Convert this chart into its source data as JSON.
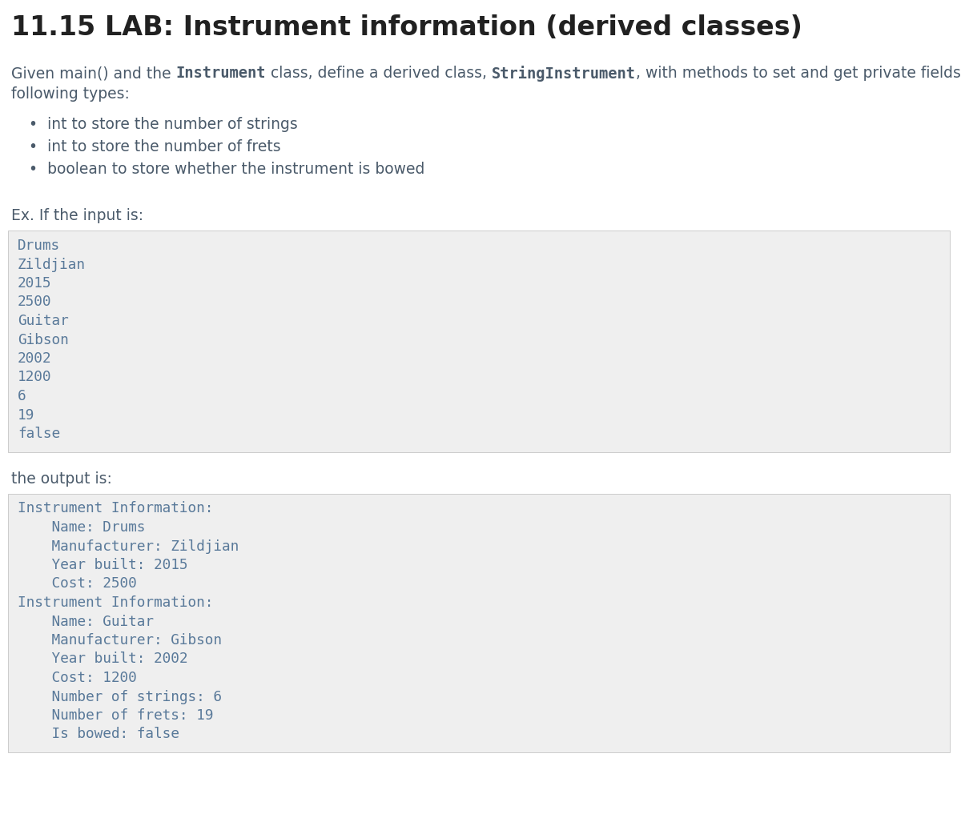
{
  "title": "11.15 LAB: Instrument information (derived classes)",
  "title_fontsize": 24,
  "title_color": "#212121",
  "bg_color": "#ffffff",
  "body_text_color": "#4a5a6a",
  "body_fontsize": 13.5,
  "mono_fontsize": 12.8,
  "mono_color": "#5a7a9a",
  "desc_parts": [
    {
      "text": "Given main() and the ",
      "mono": false
    },
    {
      "text": "Instrument",
      "mono": true
    },
    {
      "text": " class, define a derived class, ",
      "mono": false
    },
    {
      "text": "StringInstrument",
      "mono": true
    },
    {
      "text": ", with methods to set and get private fields of the",
      "mono": false
    }
  ],
  "desc_line2": "following types:",
  "bullet_items": [
    "int to store the number of strings",
    "int to store the number of frets",
    "boolean to store whether the instrument is bowed"
  ],
  "ex_label": "Ex. If the input is:",
  "input_lines": [
    "Drums",
    "Zildjian",
    "2015",
    "2500",
    "Guitar",
    "Gibson",
    "2002",
    "1200",
    "6",
    "19",
    "false"
  ],
  "output_label": "the output is:",
  "output_lines": [
    "Instrument Information:",
    "    Name: Drums",
    "    Manufacturer: Zildjian",
    "    Year built: 2015",
    "    Cost: 2500",
    "Instrument Information:",
    "    Name: Guitar",
    "    Manufacturer: Gibson",
    "    Year built: 2002",
    "    Cost: 1200",
    "    Number of strings: 6",
    "    Number of frets: 19",
    "    Is bowed: false"
  ],
  "code_box_bg": "#efefef",
  "code_box_border": "#cccccc"
}
